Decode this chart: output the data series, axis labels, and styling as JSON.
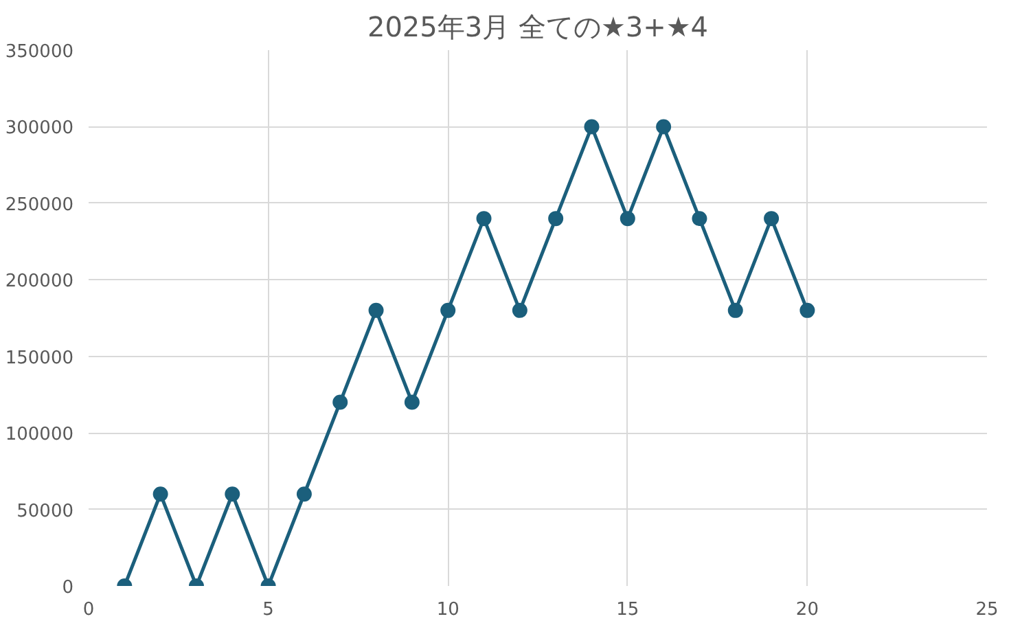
{
  "chart_data": {
    "type": "line",
    "title": "2025年3月 全ての★3+★4",
    "x": [
      1,
      2,
      3,
      4,
      5,
      6,
      7,
      8,
      9,
      10,
      11,
      12,
      13,
      14,
      15,
      16,
      17,
      18,
      19,
      20
    ],
    "series": [
      {
        "color": "#1b5f7c",
        "values": [
          0,
          60000,
          0,
          60000,
          0,
          60000,
          120000,
          180000,
          120000,
          180000,
          240000,
          180000,
          240000,
          300000,
          240000,
          300000,
          240000,
          180000,
          240000,
          180000
        ]
      }
    ],
    "xlim": [
      0,
      25
    ],
    "xticks": [
      0,
      5,
      10,
      15,
      20,
      25
    ],
    "ylim": [
      0,
      350000
    ],
    "yticks": [
      0,
      50000,
      100000,
      150000,
      200000,
      250000,
      300000,
      350000
    ],
    "grid": true,
    "marker": "circle",
    "line_style": "solid"
  }
}
